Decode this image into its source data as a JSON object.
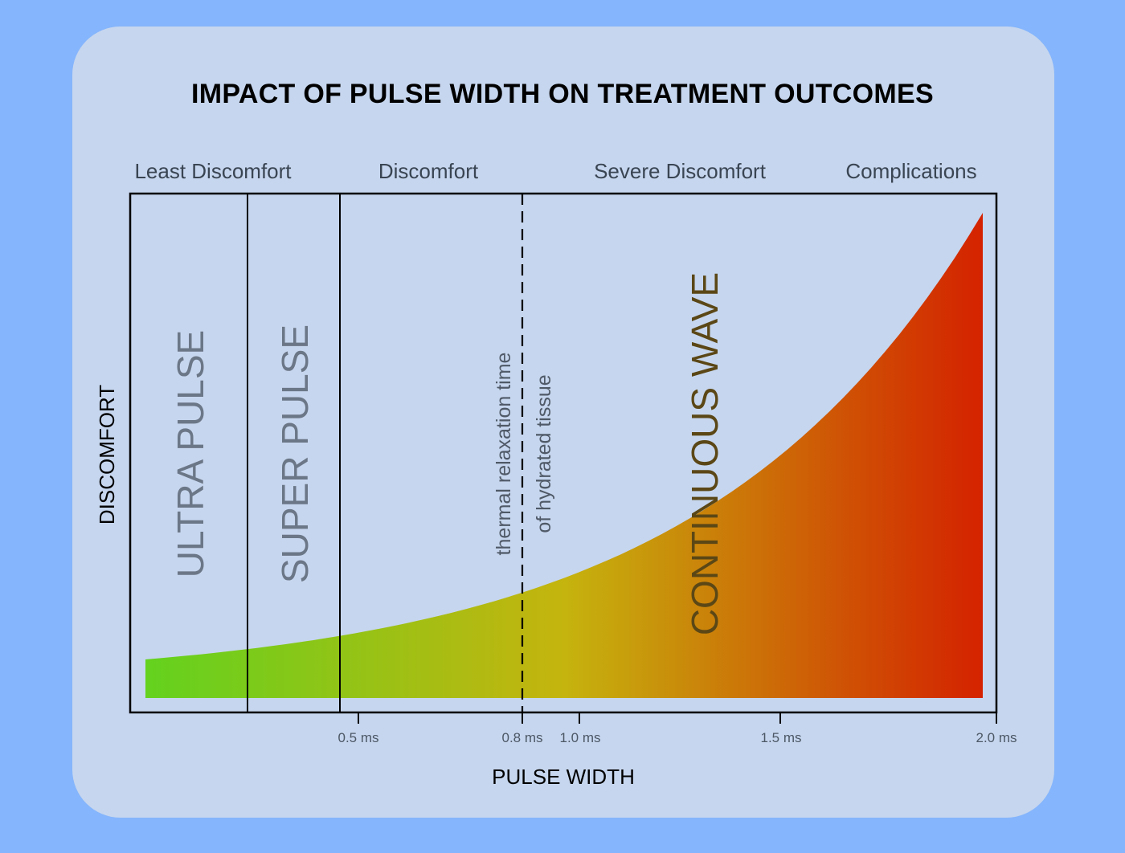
{
  "title": "IMPACT OF PULSE WIDTH ON TREATMENT OUTCOMES",
  "zones": [
    "Least Discomfort",
    "Discomfort",
    "Severe Discomfort",
    "Complications"
  ],
  "bands": [
    "ULTRA PULSE",
    "SUPER PULSE",
    "CONTINUOUS WAVE"
  ],
  "threshold": {
    "line1": "thermal relaxation time",
    "line2": "of hydrated tissue",
    "value_ms": 0.8
  },
  "axes": {
    "x_title": "PULSE WIDTH",
    "y_title": "DISCOMFORT",
    "ticks": [
      {
        "value": 0.5,
        "label": "0.5 ms"
      },
      {
        "value": 0.8,
        "label": "0.8 ms"
      },
      {
        "value": 1.0,
        "label": "1.0 ms"
      },
      {
        "value": 1.5,
        "label": "1.5 ms"
      },
      {
        "value": 2.0,
        "label": "2.0 ms"
      }
    ]
  },
  "colors": {
    "background": "#85b5fc",
    "card": "#c6d6ee",
    "gradient_start": "#63d21e",
    "gradient_mid": "#c5b40e",
    "gradient_end": "#d42200"
  }
}
